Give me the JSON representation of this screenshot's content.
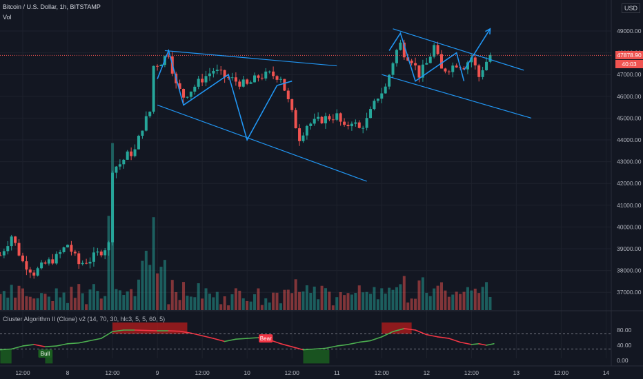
{
  "header": {
    "symbol_title": "Bitcoin / U.S. Dollar, 1h, BITSTAMP",
    "volume_label": "Vol",
    "currency": "USD",
    "last_price": "47878.90",
    "countdown": "40:03"
  },
  "indicator": {
    "title": "Cluster Algorithm II (Clone) v2 (14, 70, 30, hlc3, 5, 5, 60, 5)",
    "bull_label": "Bull",
    "bear_label": "Bear",
    "levels": [
      80,
      40,
      0
    ],
    "level_labels": [
      "80.00",
      "40.00",
      "0.00"
    ]
  },
  "colors": {
    "background": "#131722",
    "up": "#26a69a",
    "down": "#ef5350",
    "pattern": "#2196f3",
    "grid": "#1e222d"
  },
  "chart_data": [
    {
      "type": "candlestick",
      "title": "Bitcoin / U.S. Dollar, 1h, BITSTAMP",
      "ylabel": "USD",
      "ylim": [
        36200,
        50200
      ],
      "grid": true,
      "last_price": 47878.9,
      "price_ticks": [
        37000,
        38000,
        39000,
        40000,
        41000,
        42000,
        43000,
        44000,
        45000,
        46000,
        47000,
        48000,
        49000
      ],
      "price_tick_labels": [
        "37000.00",
        "38000.00",
        "39000.00",
        "40000.00",
        "41000.00",
        "42000.00",
        "43000.00",
        "44000.00",
        "45000.00",
        "46000.00",
        "47000.00",
        "48000.00",
        "49000.00"
      ],
      "x_tick_labels": [
        "12:00",
        "8",
        "12:00",
        "9",
        "12:00",
        "10",
        "12:00",
        "11",
        "12:00",
        "12",
        "12:00",
        "13",
        "12:00",
        "14"
      ],
      "x_tick_hours": [
        -12,
        0,
        12,
        24,
        36,
        48,
        60,
        72,
        84,
        96,
        108,
        120,
        132,
        144
      ],
      "series_close_waypoints": [
        [
          -18,
          38700
        ],
        [
          -15,
          39600
        ],
        [
          -12,
          38400
        ],
        [
          -9,
          37900
        ],
        [
          -6,
          38300
        ],
        [
          -3,
          38600
        ],
        [
          0,
          39200
        ],
        [
          3,
          38300
        ],
        [
          6,
          38500
        ],
        [
          9,
          38900
        ],
        [
          11,
          39200
        ],
        [
          12,
          42700
        ],
        [
          14,
          42900
        ],
        [
          16,
          43300
        ],
        [
          18,
          43500
        ],
        [
          20,
          44600
        ],
        [
          22,
          45300
        ],
        [
          23,
          47400
        ],
        [
          25,
          47600
        ],
        [
          27,
          48000
        ],
        [
          29,
          46500
        ],
        [
          31,
          46000
        ],
        [
          33,
          46300
        ],
        [
          36,
          46800
        ],
        [
          39,
          47200
        ],
        [
          42,
          46900
        ],
        [
          45,
          46700
        ],
        [
          48,
          46500
        ],
        [
          51,
          46900
        ],
        [
          54,
          47000
        ],
        [
          57,
          46900
        ],
        [
          60,
          45200
        ],
        [
          62,
          44100
        ],
        [
          64,
          44700
        ],
        [
          66,
          44800
        ],
        [
          69,
          45000
        ],
        [
          72,
          45100
        ],
        [
          74,
          44500
        ],
        [
          76,
          44900
        ],
        [
          78,
          44500
        ],
        [
          80,
          44900
        ],
        [
          83,
          46000
        ],
        [
          85,
          46400
        ],
        [
          86,
          47000
        ],
        [
          87,
          47600
        ],
        [
          88,
          48100
        ],
        [
          89,
          48400
        ],
        [
          90,
          48000
        ],
        [
          92,
          47700
        ],
        [
          94,
          47000
        ],
        [
          96,
          47500
        ],
        [
          98,
          48300
        ],
        [
          100,
          47200
        ],
        [
          102,
          47300
        ],
        [
          104,
          47500
        ],
        [
          106,
          47400
        ],
        [
          108,
          47800
        ],
        [
          110,
          46900
        ],
        [
          111,
          47300
        ],
        [
          113,
          47900
        ]
      ],
      "channels": [
        {
          "name": "upper-1",
          "points": [
            [
              26,
              48100
            ],
            [
              72,
              47400
            ]
          ]
        },
        {
          "name": "lower-1",
          "points": [
            [
              24,
              45600
            ],
            [
              80,
              42100
            ]
          ]
        },
        {
          "name": "upper-2",
          "points": [
            [
              87,
              49100
            ],
            [
              122,
              47200
            ]
          ]
        },
        {
          "name": "lower-2",
          "points": [
            [
              84,
              47000
            ],
            [
              124,
              45000
            ]
          ]
        }
      ],
      "zigzags": [
        [
          [
            24,
            46800
          ],
          [
            27,
            48100
          ],
          [
            31,
            45600
          ],
          [
            43,
            47000
          ],
          [
            48,
            44000
          ],
          [
            56,
            46500
          ],
          [
            60,
            46700
          ]
        ],
        [
          [
            86,
            48100
          ],
          [
            89,
            48900
          ],
          [
            93,
            46700
          ],
          [
            104,
            48000
          ],
          [
            106,
            46700
          ]
        ]
      ],
      "arrow": {
        "points": [
          [
            106,
            47200
          ],
          [
            113,
            49100
          ]
        ]
      }
    },
    {
      "type": "bar",
      "title": "Vol"
    },
    {
      "type": "line",
      "title": "Cluster Algorithm II (Clone) v2 (14, 70, 30, hlc3, 5, 5, 60, 5)",
      "ylim": [
        -8,
        100
      ],
      "levels": [
        70,
        30
      ],
      "bear_zones": [
        [
          12,
          32
        ],
        [
          84,
          92
        ]
      ],
      "bull_zones": [
        [
          -18,
          -15
        ],
        [
          -6,
          -4
        ],
        [
          63,
          70
        ]
      ],
      "labels": [
        {
          "text": "Bull",
          "hour": -6,
          "value": 18
        },
        {
          "text": "Bear",
          "hour": 53,
          "value": 58
        }
      ],
      "waypoints": [
        [
          -18,
          28
        ],
        [
          -15,
          30
        ],
        [
          -12,
          38
        ],
        [
          -9,
          42
        ],
        [
          -6,
          36
        ],
        [
          -3,
          38
        ],
        [
          0,
          44
        ],
        [
          3,
          46
        ],
        [
          6,
          52
        ],
        [
          9,
          58
        ],
        [
          12,
          76
        ],
        [
          15,
          80
        ],
        [
          18,
          80
        ],
        [
          21,
          79
        ],
        [
          24,
          78
        ],
        [
          27,
          78
        ],
        [
          30,
          77
        ],
        [
          33,
          72
        ],
        [
          36,
          65
        ],
        [
          39,
          58
        ],
        [
          42,
          50
        ],
        [
          45,
          56
        ],
        [
          48,
          58
        ],
        [
          51,
          60
        ],
        [
          54,
          54
        ],
        [
          57,
          44
        ],
        [
          60,
          36
        ],
        [
          63,
          28
        ],
        [
          66,
          30
        ],
        [
          69,
          32
        ],
        [
          72,
          38
        ],
        [
          75,
          42
        ],
        [
          78,
          48
        ],
        [
          81,
          52
        ],
        [
          84,
          62
        ],
        [
          87,
          76
        ],
        [
          90,
          84
        ],
        [
          93,
          80
        ],
        [
          96,
          68
        ],
        [
          99,
          62
        ],
        [
          102,
          58
        ],
        [
          105,
          48
        ],
        [
          108,
          42
        ],
        [
          110,
          44
        ],
        [
          112,
          40
        ],
        [
          114,
          44
        ]
      ]
    }
  ]
}
